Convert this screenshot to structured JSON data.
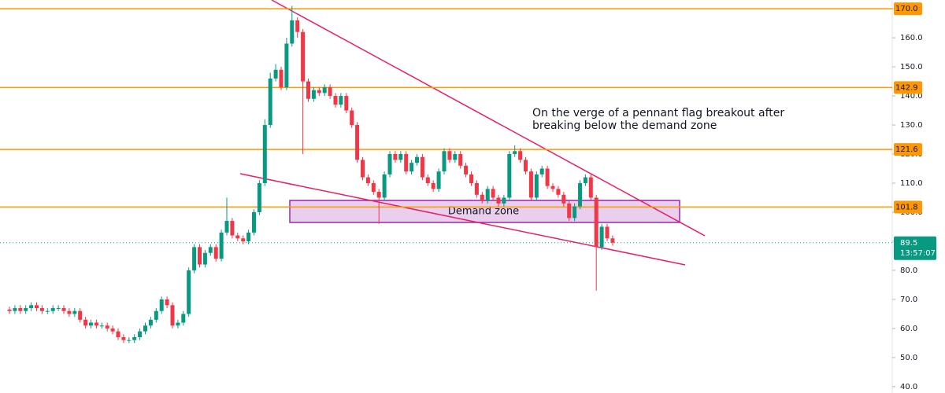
{
  "chart_data": {
    "type": "candlestick",
    "open": [
      66.5,
      66,
      67,
      66,
      67,
      68,
      67,
      66,
      66,
      67,
      67,
      66,
      65,
      66,
      63,
      61,
      62,
      61,
      61,
      60,
      59,
      57,
      56,
      56,
      57,
      59,
      61,
      63,
      66,
      70,
      68,
      61,
      62,
      65,
      80,
      88,
      82,
      86,
      88,
      84,
      93,
      97,
      92,
      91,
      90,
      93,
      100,
      110,
      130,
      146,
      149,
      143,
      158,
      166,
      162,
      145,
      139,
      142,
      141,
      143,
      140,
      137,
      140,
      135,
      130,
      118,
      112,
      110,
      107,
      105,
      113,
      120,
      118,
      120,
      114,
      117,
      119,
      112,
      110,
      108,
      114,
      121,
      118,
      120,
      116,
      113,
      110,
      106,
      104,
      108,
      105,
      103,
      105,
      120,
      121,
      118,
      114,
      105,
      113,
      115,
      109,
      108,
      106,
      103,
      98,
      102,
      110,
      112,
      105,
      88,
      95,
      91
    ],
    "high": [
      67.5,
      68,
      68,
      68,
      69,
      69,
      68,
      67,
      68,
      68,
      68,
      67,
      67,
      67,
      64,
      63,
      63,
      62,
      62,
      61,
      60,
      58,
      57,
      58,
      60,
      62,
      64,
      67,
      71,
      71,
      69,
      63,
      66,
      81,
      89,
      89,
      87,
      89,
      89,
      94,
      105,
      98,
      93,
      92,
      94,
      101,
      111,
      132,
      148,
      151,
      150,
      160,
      171,
      167,
      163,
      146,
      143,
      143,
      144,
      144,
      141,
      141,
      141,
      136,
      131,
      119,
      113,
      111,
      108,
      114,
      121,
      121,
      121,
      121,
      118,
      120,
      120,
      113,
      111,
      115,
      122,
      122,
      121,
      121,
      117,
      114,
      111,
      107,
      109,
      109,
      106,
      106,
      121,
      123,
      122,
      119,
      115,
      114,
      116,
      116,
      110,
      109,
      107,
      104,
      103,
      111,
      113,
      113,
      106,
      96,
      96,
      92
    ],
    "low": [
      65,
      65,
      65,
      65,
      66,
      66,
      65,
      65,
      65,
      66,
      65,
      64,
      64,
      62,
      60,
      60,
      60,
      60,
      59,
      58,
      56,
      55,
      55,
      55,
      56,
      58,
      60,
      62,
      65,
      67,
      60,
      60,
      61,
      64,
      79,
      81,
      81,
      85,
      83,
      83,
      92,
      91,
      90,
      89,
      89,
      92,
      99,
      109,
      129,
      145,
      142,
      142,
      157,
      160,
      120,
      138,
      138,
      140,
      140,
      139,
      136,
      136,
      134,
      129,
      117,
      111,
      109,
      106,
      96,
      104,
      112,
      117,
      117,
      113,
      113,
      116,
      111,
      109,
      107,
      107,
      113,
      117,
      117,
      115,
      112,
      109,
      105,
      103,
      103,
      104,
      102,
      102,
      104,
      119,
      117,
      113,
      104,
      104,
      112,
      108,
      107,
      105,
      102,
      97,
      97,
      101,
      109,
      104,
      73,
      87,
      90,
      88.5
    ],
    "close": [
      66,
      67,
      66,
      67,
      68,
      67,
      66,
      66,
      67,
      67,
      66,
      65,
      66,
      63,
      61,
      62,
      61,
      61,
      60,
      59,
      57,
      56,
      56,
      57,
      59,
      61,
      63,
      66,
      70,
      68,
      61,
      62,
      65,
      80,
      88,
      82,
      86,
      88,
      84,
      93,
      97,
      92,
      91,
      90,
      93,
      100,
      110,
      130,
      146,
      149,
      143,
      158,
      166,
      162,
      145,
      139,
      142,
      141,
      143,
      140,
      137,
      140,
      135,
      130,
      118,
      112,
      110,
      107,
      105,
      113,
      120,
      118,
      120,
      114,
      117,
      119,
      112,
      110,
      108,
      114,
      121,
      118,
      120,
      116,
      113,
      110,
      106,
      104,
      108,
      105,
      103,
      105,
      120,
      121,
      118,
      114,
      105,
      113,
      115,
      109,
      108,
      106,
      103,
      98,
      102,
      110,
      112,
      105,
      88,
      95,
      91,
      89.5
    ],
    "up_color": "#089981",
    "down_color": "#f23645",
    "ylim": [
      37.8,
      173
    ],
    "yticks": [
      {
        "value": 40,
        "label": "40.0"
      },
      {
        "value": 50,
        "label": "50.0"
      },
      {
        "value": 60,
        "label": "60.0"
      },
      {
        "value": 70,
        "label": "70.0"
      },
      {
        "value": 80,
        "label": "80.0"
      },
      {
        "value": 90,
        "label": "90.0"
      },
      {
        "value": 100,
        "label": "100.0"
      },
      {
        "value": 110,
        "label": "110.0"
      },
      {
        "value": 120,
        "label": "120.0"
      },
      {
        "value": 130,
        "label": "130.0"
      },
      {
        "value": 140,
        "label": "140.0"
      },
      {
        "value": 150,
        "label": "150.0"
      },
      {
        "value": 160,
        "label": "160.0"
      },
      {
        "value": 170,
        "label": "170.0"
      }
    ],
    "levels": [
      {
        "value": 170,
        "label": "170.0"
      },
      {
        "value": 142.9,
        "label": "142.9"
      },
      {
        "value": 121.6,
        "label": "121.6"
      },
      {
        "value": 101.8,
        "label": "101.8"
      }
    ],
    "level_color": "#ff9800",
    "current_price": {
      "value": 89.5,
      "label": "89.5",
      "countdown": "13:57:07"
    },
    "zone_label": "Demand zone",
    "annotation": [
      "On the verge of a pennant flag breakout after",
      "breaking below the demand zone"
    ]
  }
}
